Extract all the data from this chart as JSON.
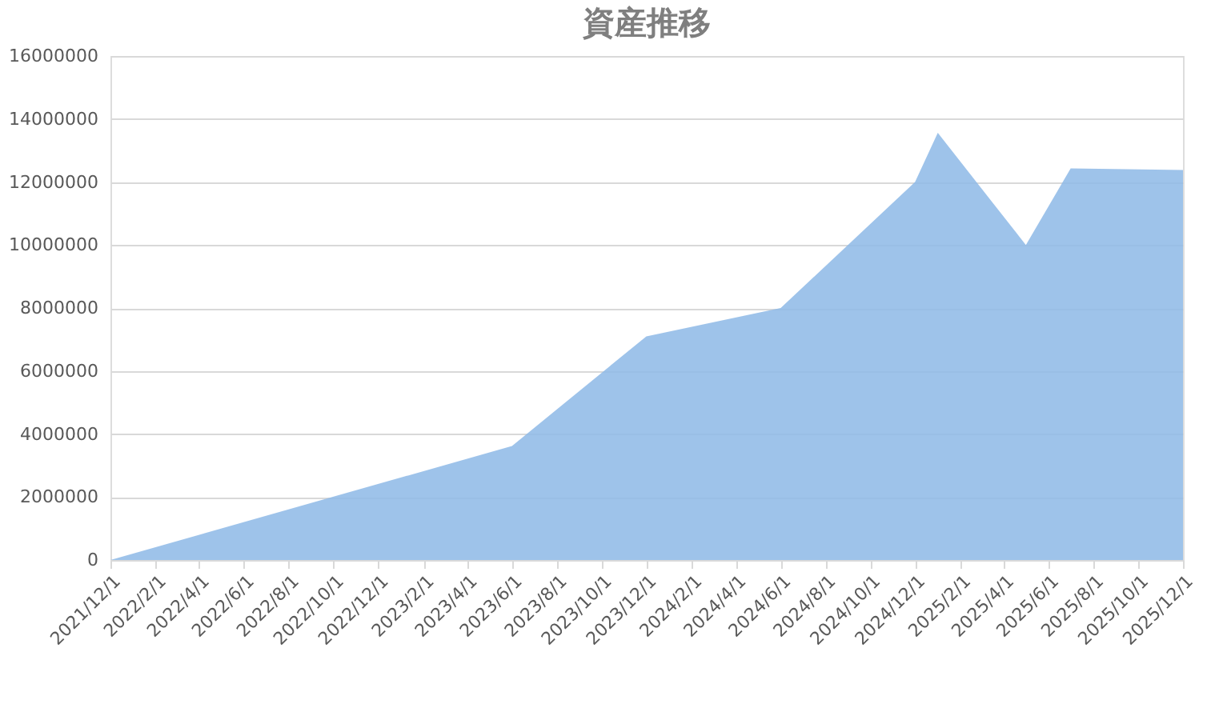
{
  "chart_data": {
    "type": "area",
    "title": "資産推移",
    "x": [
      "2021-12-01",
      "2023-06-01",
      "2023-12-01",
      "2024-06-01",
      "2024-12-01",
      "2025-01-01",
      "2025-05-01",
      "2025-07-01",
      "2025-12-01"
    ],
    "series": [
      {
        "color": "#8db8e6",
        "values": [
          0,
          3620000,
          7100000,
          8000000,
          12000000,
          13560000,
          10000000,
          12430000,
          12380000
        ]
      }
    ],
    "xlim": [
      "2021-12-01",
      "2025-12-01"
    ],
    "xticks": [
      {
        "value": "2021-12-01",
        "label": "2021/12/1"
      },
      {
        "value": "2022-02-01",
        "label": "2022/2/1"
      },
      {
        "value": "2022-04-01",
        "label": "2022/4/1"
      },
      {
        "value": "2022-06-01",
        "label": "2022/6/1"
      },
      {
        "value": "2022-08-01",
        "label": "2022/8/1"
      },
      {
        "value": "2022-10-01",
        "label": "2022/10/1"
      },
      {
        "value": "2022-12-01",
        "label": "2022/12/1"
      },
      {
        "value": "2023-02-01",
        "label": "2023/2/1"
      },
      {
        "value": "2023-04-01",
        "label": "2023/4/1"
      },
      {
        "value": "2023-06-01",
        "label": "2023/6/1"
      },
      {
        "value": "2023-08-01",
        "label": "2023/8/1"
      },
      {
        "value": "2023-10-01",
        "label": "2023/10/1"
      },
      {
        "value": "2023-12-01",
        "label": "2023/12/1"
      },
      {
        "value": "2024-02-01",
        "label": "2024/2/1"
      },
      {
        "value": "2024-04-01",
        "label": "2024/4/1"
      },
      {
        "value": "2024-06-01",
        "label": "2024/6/1"
      },
      {
        "value": "2024-08-01",
        "label": "2024/8/1"
      },
      {
        "value": "2024-10-01",
        "label": "2024/10/1"
      },
      {
        "value": "2024-12-01",
        "label": "2024/12/1"
      },
      {
        "value": "2025-02-01",
        "label": "2025/2/1"
      },
      {
        "value": "2025-04-01",
        "label": "2025/4/1"
      },
      {
        "value": "2025-06-01",
        "label": "2025/6/1"
      },
      {
        "value": "2025-08-01",
        "label": "2025/8/1"
      },
      {
        "value": "2025-10-01",
        "label": "2025/10/1"
      },
      {
        "value": "2025-12-01",
        "label": "2025/12/1"
      }
    ],
    "ylim": [
      0,
      16000000
    ],
    "yticks": [
      0,
      2000000,
      4000000,
      6000000,
      8000000,
      10000000,
      12000000,
      14000000,
      16000000
    ],
    "grid": "y",
    "legend": false
  }
}
